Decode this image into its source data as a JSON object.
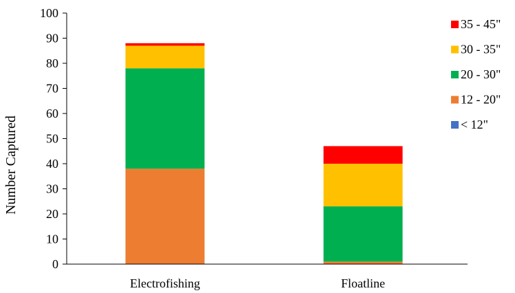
{
  "chart_data": {
    "type": "bar",
    "stacked": true,
    "title": "",
    "xlabel": "",
    "ylabel": "Number Captured",
    "ylim": [
      0,
      100
    ],
    "yticks": [
      0,
      10,
      20,
      30,
      40,
      50,
      60,
      70,
      80,
      90,
      100
    ],
    "categories": [
      "Electrofishing",
      "Floatline"
    ],
    "series": [
      {
        "name": "< 12\"",
        "color": "#4472C4",
        "values": [
          0,
          0
        ]
      },
      {
        "name": "12 - 20\"",
        "color": "#ED7D31",
        "values": [
          38,
          1
        ]
      },
      {
        "name": "20 - 30\"",
        "color": "#00B050",
        "values": [
          40,
          22
        ]
      },
      {
        "name": "30 - 35\"",
        "color": "#FFC000",
        "values": [
          9,
          17
        ]
      },
      {
        "name": "35 - 45\"",
        "color": "#FF0000",
        "values": [
          1,
          7
        ]
      }
    ],
    "legend_position": "right",
    "grid": false
  }
}
